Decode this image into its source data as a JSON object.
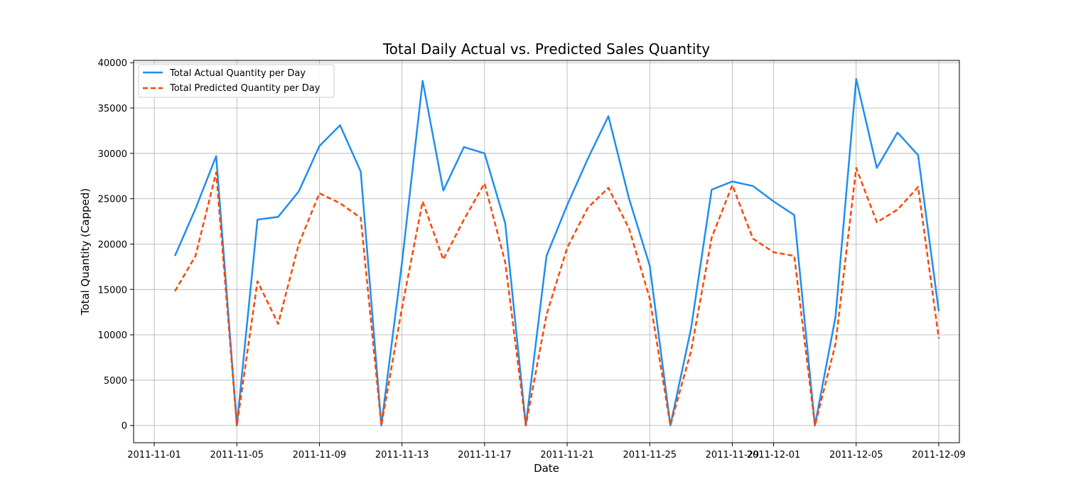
{
  "chart_data": {
    "type": "line",
    "title": "Total Daily Actual vs. Predicted Sales Quantity",
    "xlabel": "Date",
    "ylabel": "Total Quantity (Capped)",
    "xlim": [
      "2011-10-31",
      "2011-12-10"
    ],
    "ylim": [
      -1900,
      40250
    ],
    "grid": true,
    "legend_position": "top-left",
    "x_ticks": [
      "2011-11-01",
      "2011-11-05",
      "2011-11-09",
      "2011-11-13",
      "2011-11-17",
      "2011-11-21",
      "2011-11-25",
      "2011-11-29",
      "2011-12-01",
      "2011-12-05",
      "2011-12-09"
    ],
    "y_ticks": [
      0,
      5000,
      10000,
      15000,
      20000,
      25000,
      30000,
      35000,
      40000
    ],
    "x": [
      "2011-11-02",
      "2011-11-03",
      "2011-11-04",
      "2011-11-05",
      "2011-11-06",
      "2011-11-07",
      "2011-11-08",
      "2011-11-09",
      "2011-11-10",
      "2011-11-11",
      "2011-11-12",
      "2011-11-13",
      "2011-11-14",
      "2011-11-15",
      "2011-11-16",
      "2011-11-17",
      "2011-11-18",
      "2011-11-19",
      "2011-11-20",
      "2011-11-21",
      "2011-11-22",
      "2011-11-23",
      "2011-11-24",
      "2011-11-25",
      "2011-11-26",
      "2011-11-27",
      "2011-11-28",
      "2011-11-29",
      "2011-11-30",
      "2011-12-01",
      "2011-12-02",
      "2011-12-03",
      "2011-12-04",
      "2011-12-05",
      "2011-12-06",
      "2011-12-07",
      "2011-12-08",
      "2011-12-09"
    ],
    "series": [
      {
        "name": "Total Actual Quantity per Day",
        "color": "#1f8ef1",
        "style": "solid",
        "values": [
          18700,
          23900,
          29700,
          0,
          22700,
          23000,
          25800,
          30800,
          33100,
          28000,
          0,
          18000,
          38000,
          25900,
          30700,
          30000,
          22300,
          0,
          18700,
          24300,
          29400,
          34100,
          25000,
          17600,
          0,
          10700,
          26000,
          26900,
          26400,
          24700,
          23200,
          0,
          12000,
          38200,
          28400,
          32300,
          29800,
          12600
        ]
      },
      {
        "name": "Total Predicted Quantity per Day",
        "color": "#ff4500",
        "style": "dashed",
        "values": [
          14800,
          18700,
          27900,
          0,
          15900,
          11200,
          20000,
          25600,
          24500,
          22900,
          0,
          13000,
          24700,
          18300,
          22700,
          26700,
          18000,
          0,
          12200,
          19600,
          24000,
          26200,
          21700,
          14000,
          0,
          8200,
          20700,
          26500,
          20600,
          19100,
          18700,
          0,
          9000,
          28400,
          22400,
          23800,
          26300,
          9600
        ]
      }
    ]
  }
}
